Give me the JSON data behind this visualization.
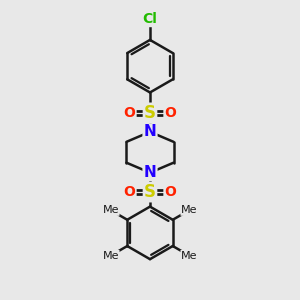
{
  "bg_color": "#e8e8e8",
  "bond_color": "#1a1a1a",
  "bond_width": 1.8,
  "S_color": "#cccc00",
  "O_color": "#ff2200",
  "N_color": "#2200ff",
  "Cl_color": "#22bb00",
  "font_size": 10,
  "fig_width": 3.0,
  "fig_height": 3.0,
  "xlim": [
    -1.6,
    1.6
  ],
  "ylim": [
    -2.5,
    4.0
  ]
}
